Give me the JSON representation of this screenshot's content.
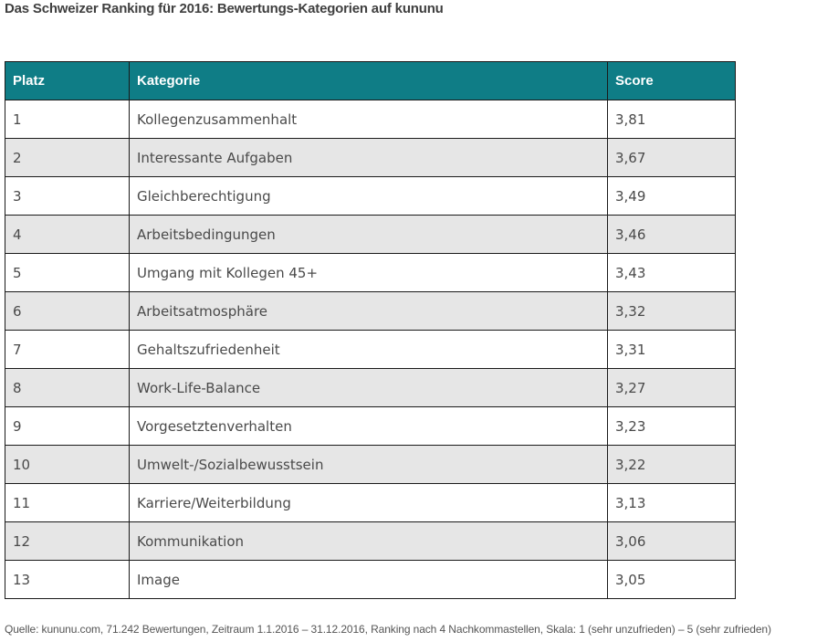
{
  "title": "Das Schweizer Ranking für 2016: Bewertungs-Kategorien auf kununu",
  "table": {
    "headers": {
      "platz": "Platz",
      "kategorie": "Kategorie",
      "score": "Score"
    },
    "rows": [
      {
        "platz": "1",
        "kategorie": "Kollegenzusammenhalt",
        "score": "3,81"
      },
      {
        "platz": "2",
        "kategorie": "Interessante Aufgaben",
        "score": "3,67"
      },
      {
        "platz": "3",
        "kategorie": "Gleichberechtigung",
        "score": "3,49"
      },
      {
        "platz": "4",
        "kategorie": "Arbeitsbedingungen",
        "score": "3,46"
      },
      {
        "platz": "5",
        "kategorie": "Umgang mit Kollegen 45+",
        "score": "3,43"
      },
      {
        "platz": "6",
        "kategorie": "Arbeitsatmosphäre",
        "score": "3,32"
      },
      {
        "platz": "7",
        "kategorie": "Gehaltszufriedenheit",
        "score": "3,31"
      },
      {
        "platz": "8",
        "kategorie": "Work-Life-Balance",
        "score": "3,27"
      },
      {
        "platz": "9",
        "kategorie": "Vorgesetztenverhalten",
        "score": "3,23"
      },
      {
        "platz": "10",
        "kategorie": "Umwelt-/Sozialbewusstsein",
        "score": "3,22"
      },
      {
        "platz": "11",
        "kategorie": "Karriere/Weiterbildung",
        "score": "3,13"
      },
      {
        "platz": "12",
        "kategorie": "Kommunikation",
        "score": "3,06"
      },
      {
        "platz": "13",
        "kategorie": "Image",
        "score": "3,05"
      }
    ]
  },
  "source": "Quelle: kununu.com, 71.242 Bewertungen, Zeitraum 1.1.2016 – 31.12.2016, Ranking nach 4 Nachkommastellen, Skala: 1 (sehr unzufrieden) – 5 (sehr zufrieden)",
  "colors": {
    "header_background": "#0f7d86",
    "header_text": "#ffffff",
    "stripe_row": "#e6e6e6",
    "border": "#1a1a1a"
  }
}
